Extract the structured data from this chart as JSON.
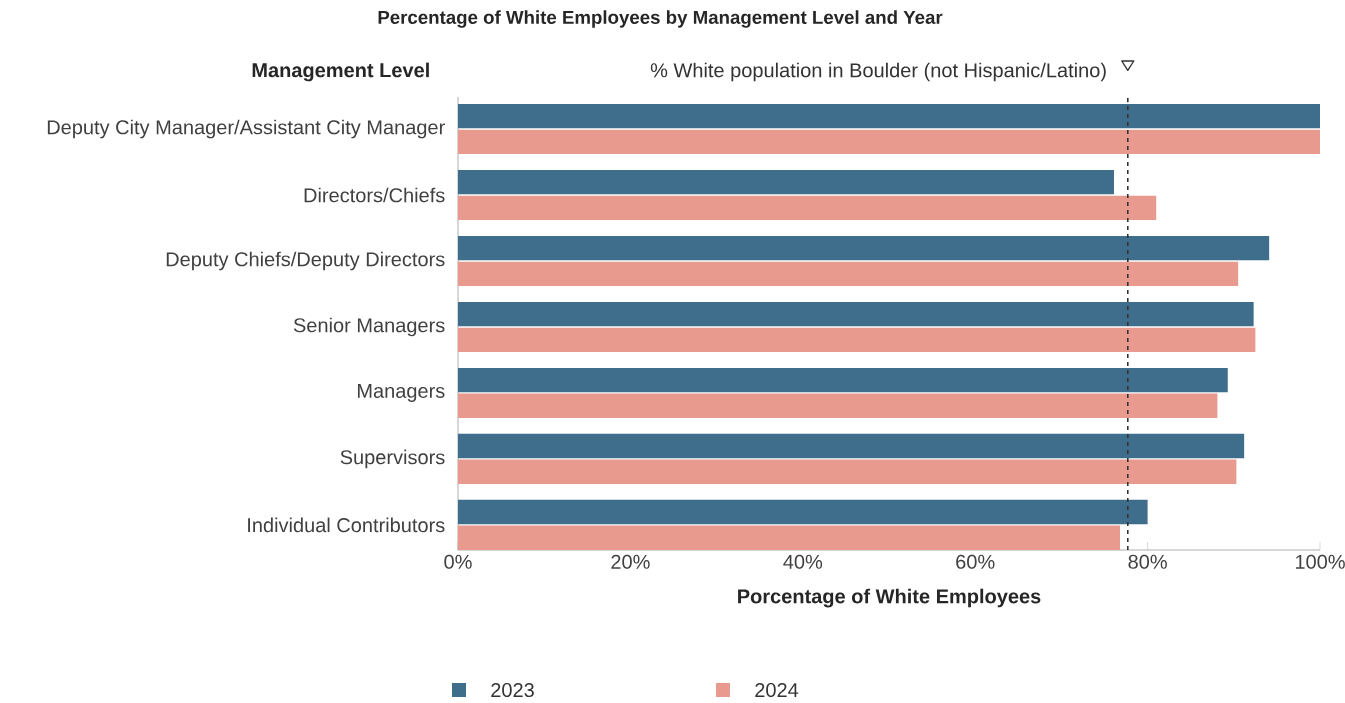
{
  "chart_data": {
    "type": "bar",
    "orientation": "horizontal",
    "title": "Percentage of White Employees by Management Level and Year",
    "xlabel": "Porcentage of White Employees",
    "ylabel": "Management Level",
    "categories": [
      "Deputy City Manager/Assistant City Manager",
      "Directors/Chiefs",
      "Deputy Chiefs/Deputy Directors",
      "Senior Managers",
      "Managers",
      "Supervisors",
      "Individual Contributors"
    ],
    "series": [
      {
        "name": "2023",
        "color": "#3f6e8c",
        "values": [
          100,
          76.1,
          94.1,
          92.3,
          89.3,
          91.2,
          80.0
        ]
      },
      {
        "name": "2024",
        "color": "#e89a8e",
        "values": [
          100,
          81.0,
          90.5,
          92.5,
          88.1,
          90.3,
          76.8
        ]
      }
    ],
    "xlim": [
      0,
      100
    ],
    "xticks": [
      {
        "value": 0,
        "label": "0%"
      },
      {
        "value": 20,
        "label": "20%"
      },
      {
        "value": 40,
        "label": "40%"
      },
      {
        "value": 60,
        "label": "60%"
      },
      {
        "value": 80,
        "label": "80%"
      },
      {
        "value": 100,
        "label": "100%"
      }
    ],
    "ref_lines": [
      {
        "axis": "x",
        "value": 77.7,
        "label": "% White population in Boulder (not Hispanic/Latino)",
        "line_style": "dashed",
        "color": "#333333"
      }
    ],
    "grid": false,
    "legend": "bottom"
  }
}
